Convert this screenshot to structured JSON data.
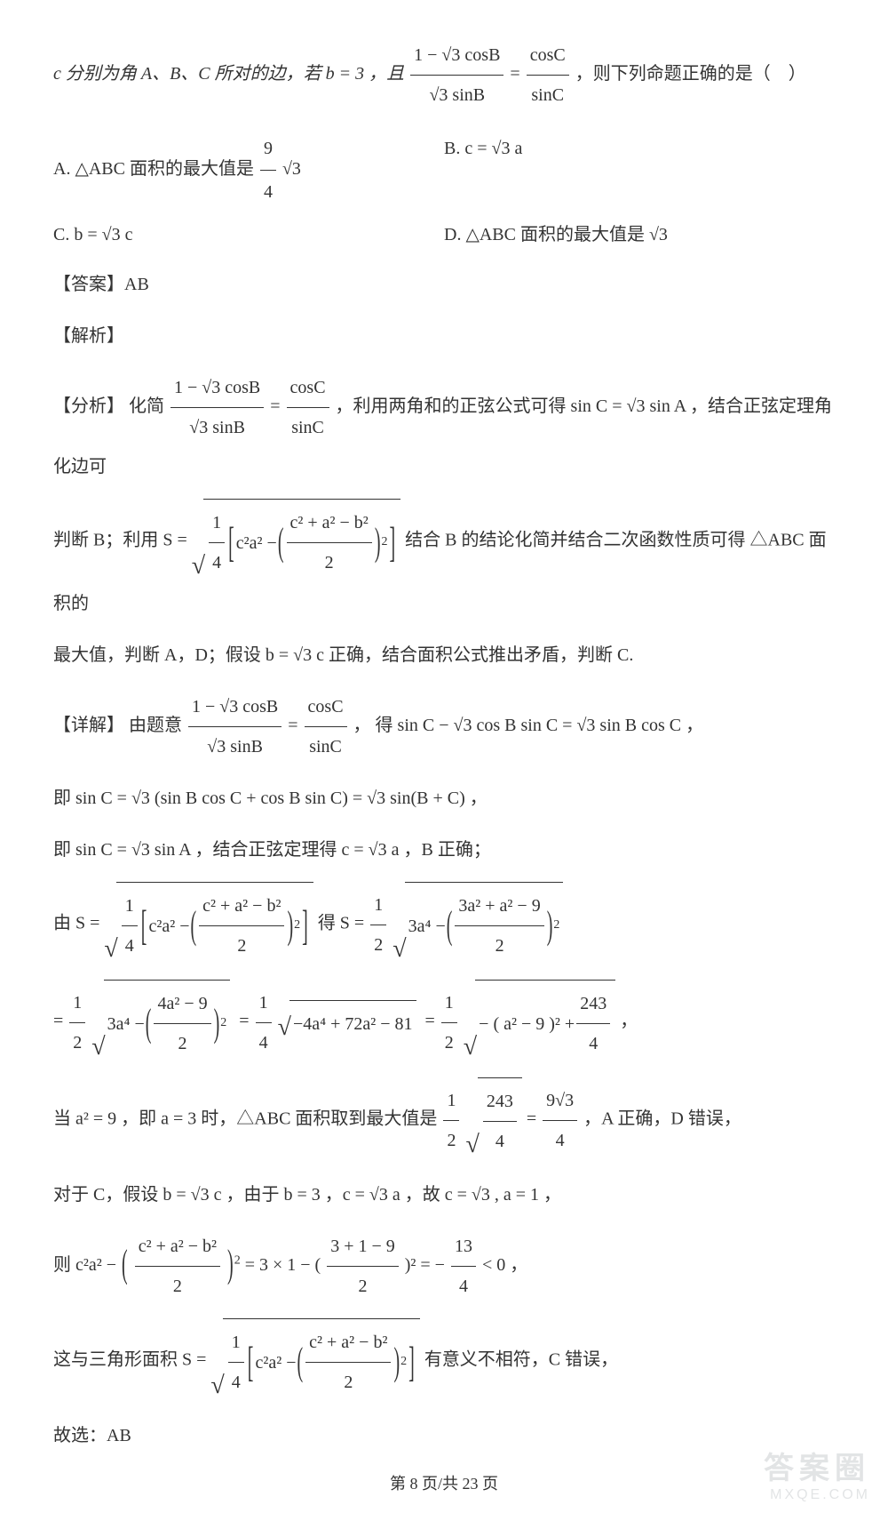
{
  "page": {
    "current": 8,
    "total": 23,
    "footer_prefix": "第 ",
    "footer_mid": " 页/共 ",
    "footer_suffix": " 页"
  },
  "watermark": {
    "line1": "答案圈",
    "line2": "MXQE.COM"
  },
  "stem": {
    "prefix": "c 分别为角 A、B、C 所对的边，若 b = 3 ，且",
    "eq_lhs_num": "1 − √3 cosB",
    "eq_lhs_den": "√3 sinB",
    "eq_rhs_num": "cosC",
    "eq_rhs_den": "sinC",
    "suffix": "，则下列命题正确的是（　）"
  },
  "options": {
    "A_pre": "A.  △ABC 面积的最大值是",
    "A_frac_num": "9",
    "A_frac_den": "4",
    "A_post": "√3",
    "B": "B.  c = √3 a",
    "C": "C.  b = √3 c",
    "D": "D.  △ABC 面积的最大值是 √3"
  },
  "labels": {
    "answer": "【答案】",
    "analysis": "【解析】",
    "fenxi": "【分析】",
    "detail": "【详解】"
  },
  "answer": "AB",
  "fenxi": {
    "p1a": "化简",
    "p1b": "，利用两角和的正弦公式可得 sin C = √3 sin A ，结合正弦定理角化边可",
    "p2a": "判断 B；利用 S =",
    "p2b": "结合 B 的结论化简并结合二次函数性质可得 △ABC 面积的",
    "p3": "最大值，判断 A，D；假设 b = √3 c 正确，结合面积公式推出矛盾，判断 C."
  },
  "detail": {
    "d1a": "由题意",
    "d1b": "， 得 sin C − √3 cos B sin C = √3 sin B cos C ，",
    "d2": "即 sin C = √3 (sin B cos C + cos B sin C) = √3 sin(B + C) ，",
    "d3": "即 sin C = √3 sin A ，结合正弦定理得 c = √3 a ，B 正确；",
    "d4a": "由 S =",
    "d4b": "得 S =",
    "d5a": "=",
    "d5b": "=",
    "d5c": "=",
    "d5_tail": "，",
    "d6a": "当 a² = 9 ，即 a = 3 时，△ABC 面积取到最大值是",
    "d6b": "，A 正确，D 错误，",
    "d7": "对于 C，假设 b = √3 c ，由于 b = 3 ，c = √3 a ，故 c = √3 , a = 1 ，",
    "d8a": "则 c²a² −",
    "d8b": "= 3 × 1 − (",
    "d8c": ")² = −",
    "d8d": " < 0 ，",
    "d9a": "这与三角形面积 S =",
    "d9b": "有意义不相符，C 错误，",
    "d10": "故选：AB"
  },
  "math": {
    "frac_cab_num": "c² + a² − b²",
    "frac_cab_den": "2",
    "one_fourth_num": "1",
    "one_fourth_den": "4",
    "one_half_num": "1",
    "one_half_den": "2",
    "frac_3a2_num": "3a² + a² − 9",
    "frac_3a2_den": "2",
    "frac_4a2_num": "4a² − 9",
    "frac_4a2_den": "2",
    "poly_flat": "−4a⁴ + 72a² − 81",
    "frac_243_num": "243",
    "frac_243_den": "4",
    "nine_sqrt3_num": "9√3",
    "nine_sqrt3_den": "4",
    "frac_319_num": "3 + 1 − 9",
    "frac_319_den": "2",
    "thirteen_num": "13",
    "thirteen_den": "4",
    "three_a4": "3a⁴ −",
    "c2a2": "c²a² −",
    "a2_minus9": "− ( a² − 9 )² +"
  }
}
